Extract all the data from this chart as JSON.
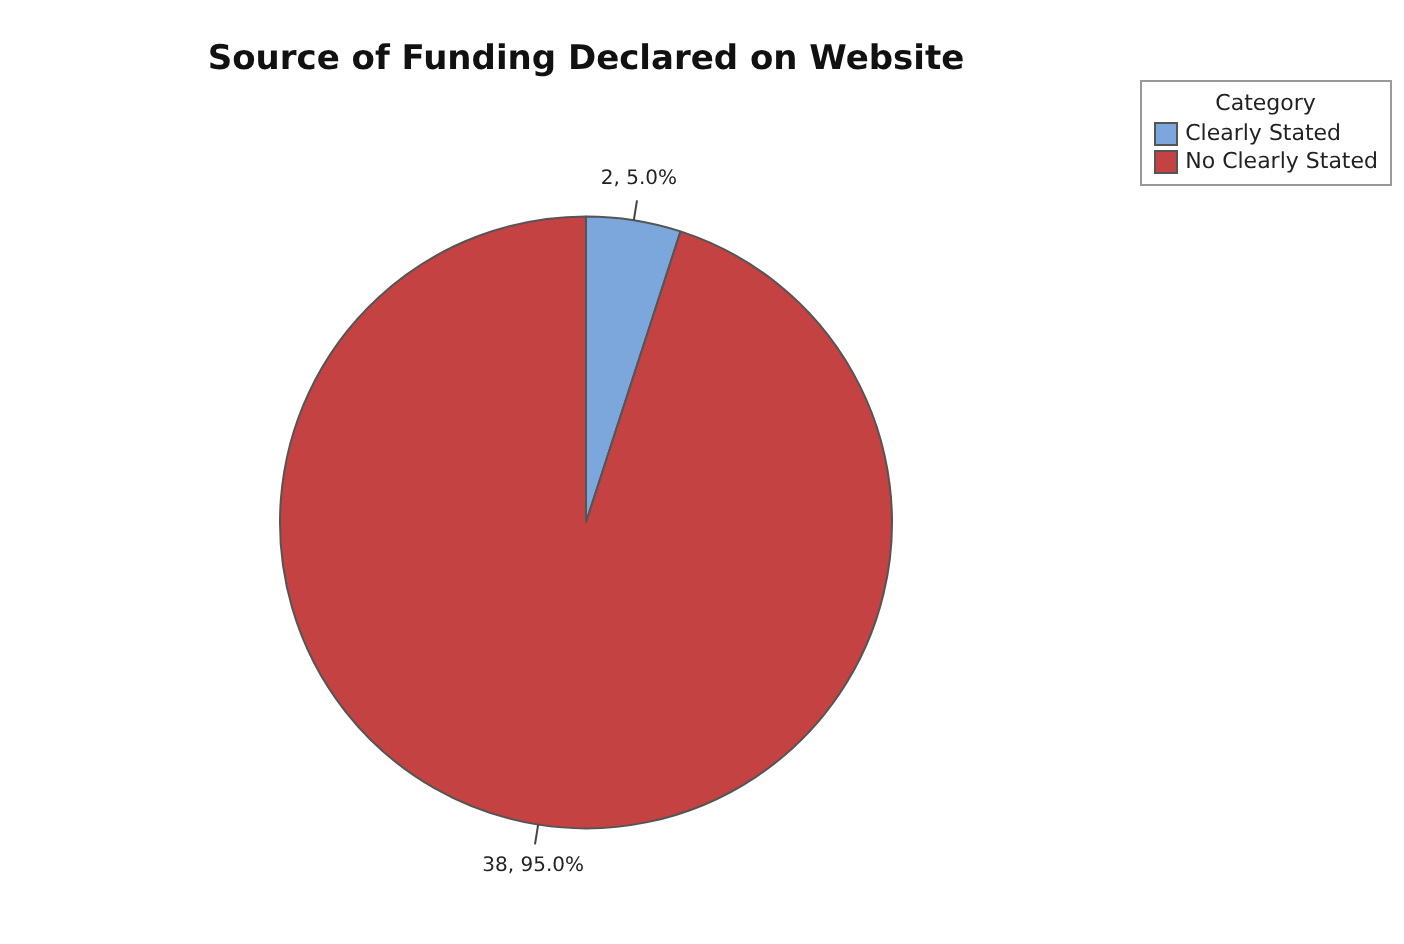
{
  "chart_data": {
    "type": "pie",
    "title": "Source of Funding Declared on Website",
    "legend_title": "Category",
    "categories": [
      "Clearly Stated",
      "No Clearly Stated"
    ],
    "values": [
      2,
      38
    ],
    "colors": [
      "#7ba7dc",
      "#c44242"
    ],
    "value_labels": [
      "2, 5.0%",
      "38, 95.0%"
    ],
    "legend": "top right"
  }
}
